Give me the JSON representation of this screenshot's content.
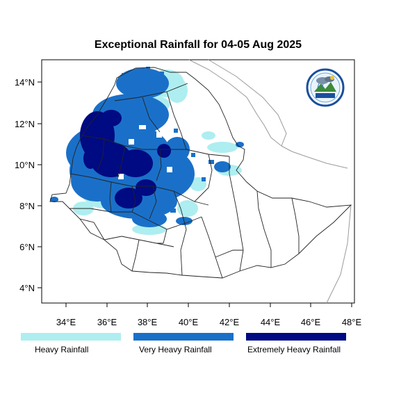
{
  "title": "Exceptional Rainfall for 04-05 Aug 2025",
  "axes": {
    "lon_ticks": [
      "34°E",
      "36°E",
      "38°E",
      "40°E",
      "42°E",
      "44°E",
      "46°E",
      "48°E"
    ],
    "lat_ticks": [
      "14°N",
      "12°N",
      "10°N",
      "8°N",
      "6°N",
      "4°N"
    ]
  },
  "legend": [
    {
      "label": "Heavy Rainfall",
      "color": "#aeeef0"
    },
    {
      "label": "Very Heavy Rainfall",
      "color": "#1a70c8"
    },
    {
      "label": "Extremely Heavy Rainfall",
      "color": "#000a82"
    }
  ],
  "logo_icon": "meteorology-institute-logo",
  "colors": {
    "heavy": "#aeeef0",
    "very_heavy": "#1a70c8",
    "extreme": "#000a82",
    "border": "#222222",
    "coast": "#9a9a9a"
  }
}
